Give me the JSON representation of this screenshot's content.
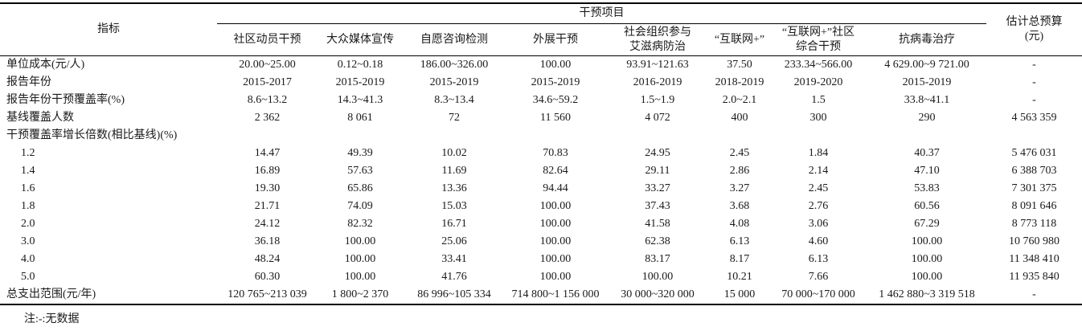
{
  "table": {
    "header": {
      "indicator": "指标",
      "group": "干预项目",
      "columns": [
        "社区动员干预",
        "大众媒体宣传",
        "自愿咨询检测",
        "外展干预",
        "社会组织参与\n艾滋病防治",
        "“互联网+”",
        "“互联网+”社区\n综合干预",
        "抗病毒治疗"
      ],
      "total": "估计总预算\n(元)"
    },
    "rows": [
      {
        "label": "单位成本(元/人)",
        "indent": false,
        "values": [
          "20.00~25.00",
          "0.12~0.18",
          "186.00~326.00",
          "100.00",
          "93.91~121.63",
          "37.50",
          "233.34~566.00",
          "4 629.00~9 721.00"
        ],
        "total": "-"
      },
      {
        "label": "报告年份",
        "indent": false,
        "values": [
          "2015-2017",
          "2015-2019",
          "2015-2019",
          "2015-2019",
          "2016-2019",
          "2018-2019",
          "2019-2020",
          "2015-2019"
        ],
        "total": "-"
      },
      {
        "label": "报告年份干预覆盖率(%)",
        "indent": false,
        "values": [
          "8.6~13.2",
          "14.3~41.3",
          "8.3~13.4",
          "34.6~59.2",
          "1.5~1.9",
          "2.0~2.1",
          "1.5",
          "33.8~41.1"
        ],
        "total": "-"
      },
      {
        "label": "基线覆盖人数",
        "indent": false,
        "values": [
          "2 362",
          "8 061",
          "72",
          "11 560",
          "4 072",
          "400",
          "300",
          "290"
        ],
        "total": "4 563 359"
      },
      {
        "label": "干预覆盖率增长倍数(相比基线)(%)",
        "indent": false,
        "values": [
          "",
          "",
          "",
          "",
          "",
          "",
          "",
          ""
        ],
        "total": ""
      },
      {
        "label": "1.2",
        "indent": true,
        "values": [
          "14.47",
          "49.39",
          "10.02",
          "70.83",
          "24.95",
          "2.45",
          "1.84",
          "40.37"
        ],
        "total": "5 476 031"
      },
      {
        "label": "1.4",
        "indent": true,
        "values": [
          "16.89",
          "57.63",
          "11.69",
          "82.64",
          "29.11",
          "2.86",
          "2.14",
          "47.10"
        ],
        "total": "6 388 703"
      },
      {
        "label": "1.6",
        "indent": true,
        "values": [
          "19.30",
          "65.86",
          "13.36",
          "94.44",
          "33.27",
          "3.27",
          "2.45",
          "53.83"
        ],
        "total": "7 301 375"
      },
      {
        "label": "1.8",
        "indent": true,
        "values": [
          "21.71",
          "74.09",
          "15.03",
          "100.00",
          "37.43",
          "3.68",
          "2.76",
          "60.56"
        ],
        "total": "8 091 646"
      },
      {
        "label": "2.0",
        "indent": true,
        "values": [
          "24.12",
          "82.32",
          "16.71",
          "100.00",
          "41.58",
          "4.08",
          "3.06",
          "67.29"
        ],
        "total": "8 773 118"
      },
      {
        "label": "3.0",
        "indent": true,
        "values": [
          "36.18",
          "100.00",
          "25.06",
          "100.00",
          "62.38",
          "6.13",
          "4.60",
          "100.00"
        ],
        "total": "10 760 980"
      },
      {
        "label": "4.0",
        "indent": true,
        "values": [
          "48.24",
          "100.00",
          "33.41",
          "100.00",
          "83.17",
          "8.17",
          "6.13",
          "100.00"
        ],
        "total": "11 348 410"
      },
      {
        "label": "5.0",
        "indent": true,
        "values": [
          "60.30",
          "100.00",
          "41.76",
          "100.00",
          "100.00",
          "10.21",
          "7.66",
          "100.00"
        ],
        "total": "11 935 840"
      },
      {
        "label": "总支出范围(元/年)",
        "indent": false,
        "values": [
          "120 765~213 039",
          "1 800~2 370",
          "86 996~105 334",
          "714 800~1 156 000",
          "30 000~320 000",
          "15 000",
          "70 000~170 000",
          "1 462 880~3 319 518"
        ],
        "total": "-"
      }
    ],
    "note": "注:-:无数据"
  }
}
